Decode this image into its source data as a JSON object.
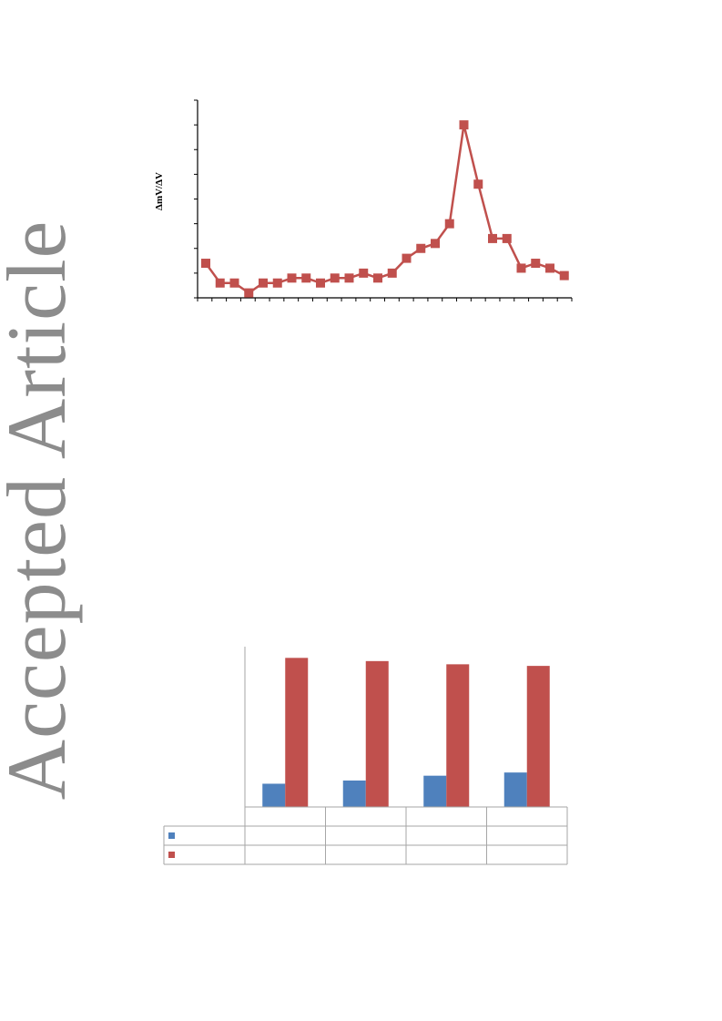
{
  "watermark": {
    "text": "Accepted Article"
  },
  "colors": {
    "series_red": "#c0504d",
    "series_blue": "#4f81bd",
    "watermark": "#8c8c8c"
  },
  "chart_data": [
    {
      "type": "line",
      "title": "",
      "xlabel": "",
      "ylabel": "ΔmV/ΔV",
      "ylim": [
        0,
        8
      ],
      "x": [
        1,
        2,
        3,
        4,
        5,
        6,
        7,
        8,
        9,
        10,
        11,
        12,
        13,
        14,
        15,
        16,
        17,
        18,
        19,
        20,
        21,
        22,
        23,
        24,
        25,
        26
      ],
      "series": [
        {
          "values": [
            1.4,
            0.6,
            0.6,
            0.2,
            0.6,
            0.6,
            0.8,
            0.8,
            0.6,
            0.8,
            0.8,
            1.0,
            0.8,
            1.0,
            1.6,
            2.0,
            2.2,
            3.0,
            7.0,
            4.6,
            2.4,
            2.4,
            1.2,
            1.4,
            1.2,
            0.9
          ]
        }
      ]
    },
    {
      "type": "bar",
      "title": "",
      "ylim": [
        0,
        100
      ],
      "categories": [
        "",
        "",
        "",
        ""
      ],
      "series": [
        {
          "values": [
            14.5,
            16.5,
            19.5,
            21.5
          ]
        },
        {
          "values": [
            93,
            91,
            89,
            88
          ]
        }
      ]
    }
  ]
}
